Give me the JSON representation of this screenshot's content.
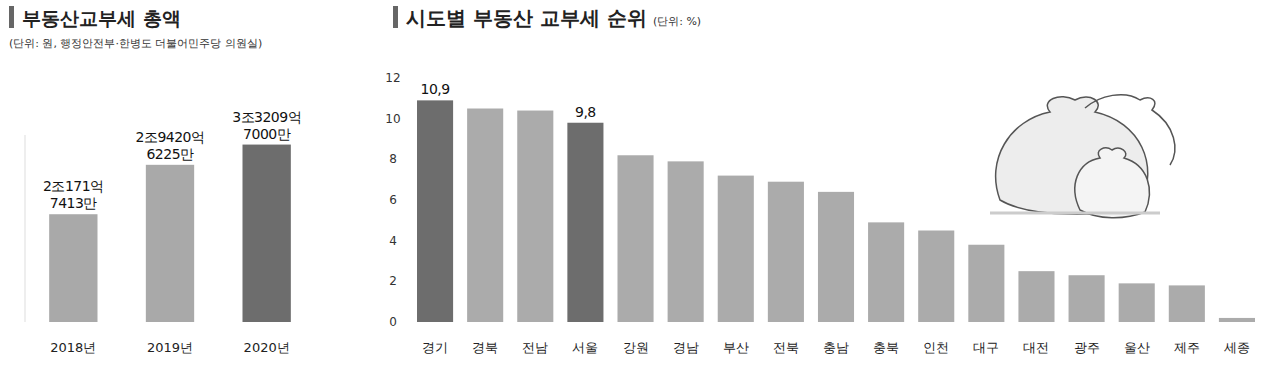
{
  "chart_data": [
    {
      "type": "bar",
      "title": "부동산교부세 총액",
      "subtitle": "(단위: 원, 행정안전부·한병도 더불어민주당 의원실)",
      "categories": [
        "2018년",
        "2019년",
        "2020년"
      ],
      "values": [
        2017174130000,
        2942062250000,
        3320970000000
      ],
      "value_labels": [
        "2조171억 7413만",
        "2조9420억 6225만",
        "3조3209억 7000만"
      ],
      "colors": [
        "#a9a9a9",
        "#a9a9a9",
        "#6d6d6d"
      ],
      "ylim": [
        0,
        3500000000000
      ],
      "data_labels": true,
      "tick_labels": "x",
      "grid": false
    },
    {
      "type": "bar",
      "title": "시도별 부동산 교부세 순위",
      "subtitle": "(단위: %)",
      "categories": [
        "경기",
        "경북",
        "전남",
        "서울",
        "강원",
        "경남",
        "부산",
        "전북",
        "충남",
        "충북",
        "인천",
        "대구",
        "대전",
        "광주",
        "울산",
        "제주",
        "세종"
      ],
      "values": [
        10.9,
        10.5,
        10.4,
        9.8,
        8.2,
        7.9,
        7.2,
        6.9,
        6.4,
        4.9,
        4.5,
        3.8,
        2.5,
        2.3,
        1.9,
        1.8,
        0.2
      ],
      "value_labels": [
        "10,9",
        null,
        null,
        "9,8",
        null,
        null,
        null,
        null,
        null,
        null,
        null,
        null,
        null,
        null,
        null,
        null,
        null
      ],
      "colors": [
        "#6d6d6d",
        "#ababab",
        "#ababab",
        "#6d6d6d",
        "#ababab",
        "#ababab",
        "#ababab",
        "#ababab",
        "#ababab",
        "#ababab",
        "#ababab",
        "#ababab",
        "#ababab",
        "#ababab",
        "#ababab",
        "#ababab",
        "#ababab"
      ],
      "ylim": [
        0,
        12
      ],
      "yticks": [
        0,
        2,
        4,
        6,
        8,
        10,
        12
      ],
      "data_labels": true,
      "grid": false
    }
  ]
}
